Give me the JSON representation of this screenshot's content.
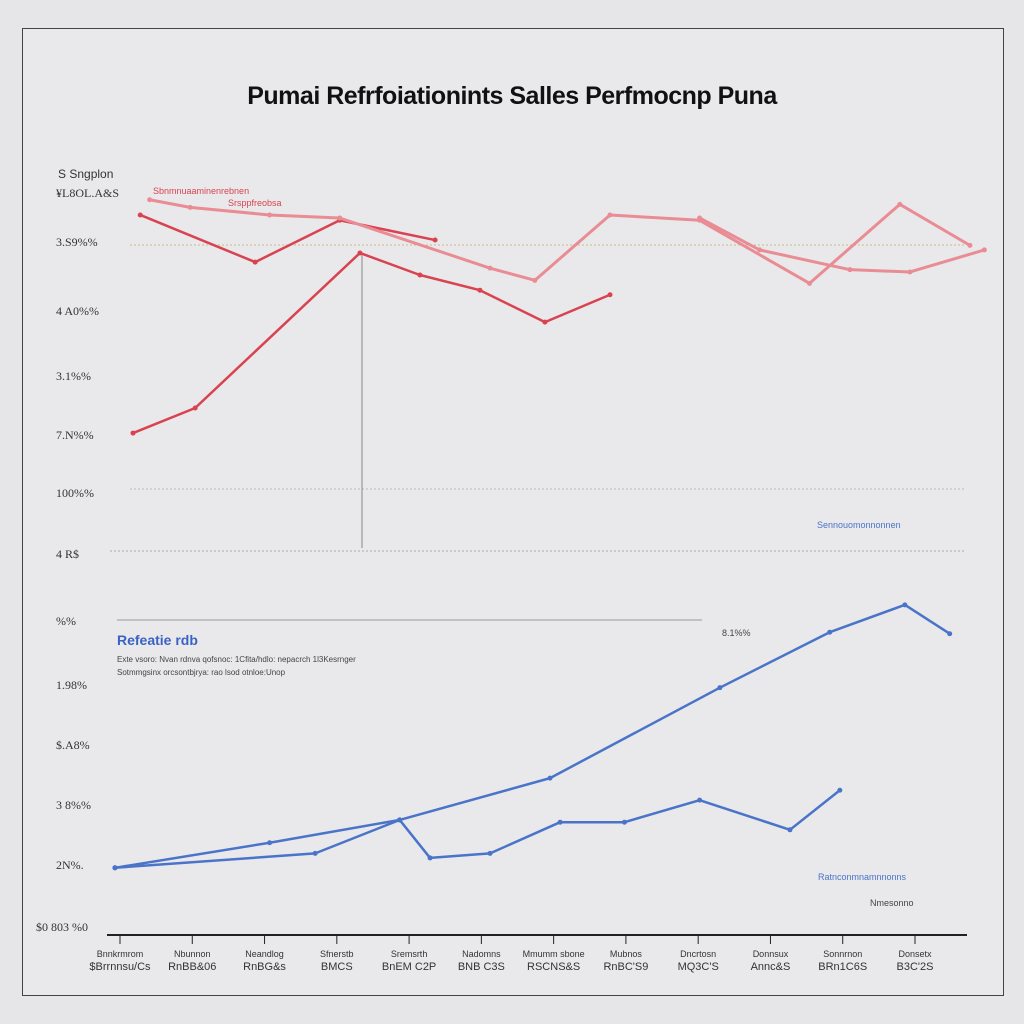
{
  "title": "Pumai Refrfoiationints Salles Perfmocnp Puna",
  "y_axis_title": "S Sngplon",
  "y_tick_labels": [
    "¥L8OL.A&S",
    "3.S9%%",
    "4 A0%%",
    "3.1%%",
    "7.N%%",
    "100%%",
    "4 R$",
    "%%",
    "1.98%",
    "$.A8%",
    "3 8%%",
    "2N%.",
    "$0 803 %0"
  ],
  "legend": {
    "title": "Refeatie rdb",
    "lines": [
      "Exte vsoro: Nvan rdnva qofsnoc: 1Cfita/hdlo: nepacrch 1l3Kesrnger",
      "Sotmmgsinx orcsontbjrya: rao lsod otnloe:Unop"
    ]
  },
  "annotations": {
    "red_top_1": "Sbnmnuaaminenrebnen",
    "red_top_2": "Srsppfreobsa",
    "blue_mid": "Sennouomonnonnen",
    "blue_label": "8.1%%",
    "blue_bottom_1": "Ratnconmnamnnonns",
    "blue_bottom_2": "Nmesonno"
  },
  "x_tick_labels": [
    [
      "Bnnkrmrom",
      "$Brrnnsu/Cs"
    ],
    [
      "Nbunnon",
      "RnBB&06"
    ],
    [
      "Neandlog",
      "RnBG&s"
    ],
    [
      "Sfnerstb",
      "BMCS"
    ],
    [
      "Sremsrth",
      "BnEM C2P"
    ],
    [
      "Nadomns",
      "BNB C3S"
    ],
    [
      "Mmumm sbone",
      "RSCNS&S"
    ],
    [
      "Mubnos",
      "RnBC'S9"
    ],
    [
      "Dncrtosn",
      "MQ3C'S"
    ],
    [
      "Donnsux",
      "Annc&S"
    ],
    [
      "Sonnrnon",
      "BRn1C6S"
    ],
    [
      "Donsetx",
      "B3C'2S"
    ]
  ],
  "chart_data": {
    "type": "line",
    "title": "Pumai Refrfoiationints Salles Perfmocnp Puna",
    "xlabel": "",
    "ylabel": "S Sngplon",
    "x_categories_count": 12,
    "y_scale": "index 0-100 (labels illegible)",
    "ylim": [
      0,
      100
    ],
    "grid": "dotted horizontal reference lines",
    "colors": {
      "red": "#d9434f",
      "red_light": "#e98c94",
      "blue": "#4a74c9",
      "blue_light": "#9bb5e3"
    },
    "series": [
      {
        "color": "red",
        "points": [
          [
            0.18,
            66.7
          ],
          [
            1.04,
            70
          ],
          [
            3.32,
            90.4
          ],
          [
            4.15,
            87.5
          ],
          [
            4.98,
            85.5
          ],
          [
            5.88,
            81.3
          ],
          [
            6.78,
            84.9
          ]
        ]
      },
      {
        "color": "red",
        "points": [
          [
            0.28,
            95.4
          ],
          [
            1.87,
            89.2
          ],
          [
            3.04,
            94.7
          ],
          [
            4.36,
            92.1
          ]
        ]
      },
      {
        "color": "red_light",
        "points": [
          [
            0.41,
            97.4
          ],
          [
            0.97,
            96.4
          ],
          [
            2.07,
            95.4
          ],
          [
            3.04,
            95
          ],
          [
            5.12,
            88.4
          ],
          [
            5.74,
            86.8
          ],
          [
            6.78,
            95.4
          ],
          [
            8.02,
            94.7
          ],
          [
            9.54,
            86.4
          ],
          [
            10.79,
            96.8
          ],
          [
            11.76,
            91.4
          ]
        ]
      },
      {
        "color": "red_light",
        "points": [
          [
            8.02,
            95
          ],
          [
            8.85,
            90.8
          ],
          [
            10.1,
            88.2
          ],
          [
            10.93,
            87.9
          ],
          [
            11.96,
            90.8
          ]
        ]
      },
      {
        "color": "blue",
        "points": [
          [
            -0.07,
            9.5
          ],
          [
            2.07,
            12.8
          ],
          [
            3.87,
            15.8
          ],
          [
            5.95,
            21.3
          ],
          [
            8.3,
            33.2
          ],
          [
            9.82,
            40.5
          ],
          [
            10.86,
            44.1
          ],
          [
            11.48,
            40.3
          ]
        ]
      },
      {
        "color": "blue",
        "points": [
          [
            -0.07,
            9.5
          ],
          [
            2.7,
            11.4
          ],
          [
            3.87,
            15.8
          ],
          [
            4.29,
            10.8
          ],
          [
            5.12,
            11.4
          ],
          [
            6.09,
            15.5
          ],
          [
            6.98,
            15.5
          ],
          [
            8.02,
            18.4
          ],
          [
            9.27,
            14.5
          ],
          [
            9.96,
            19.7
          ]
        ]
      }
    ]
  }
}
